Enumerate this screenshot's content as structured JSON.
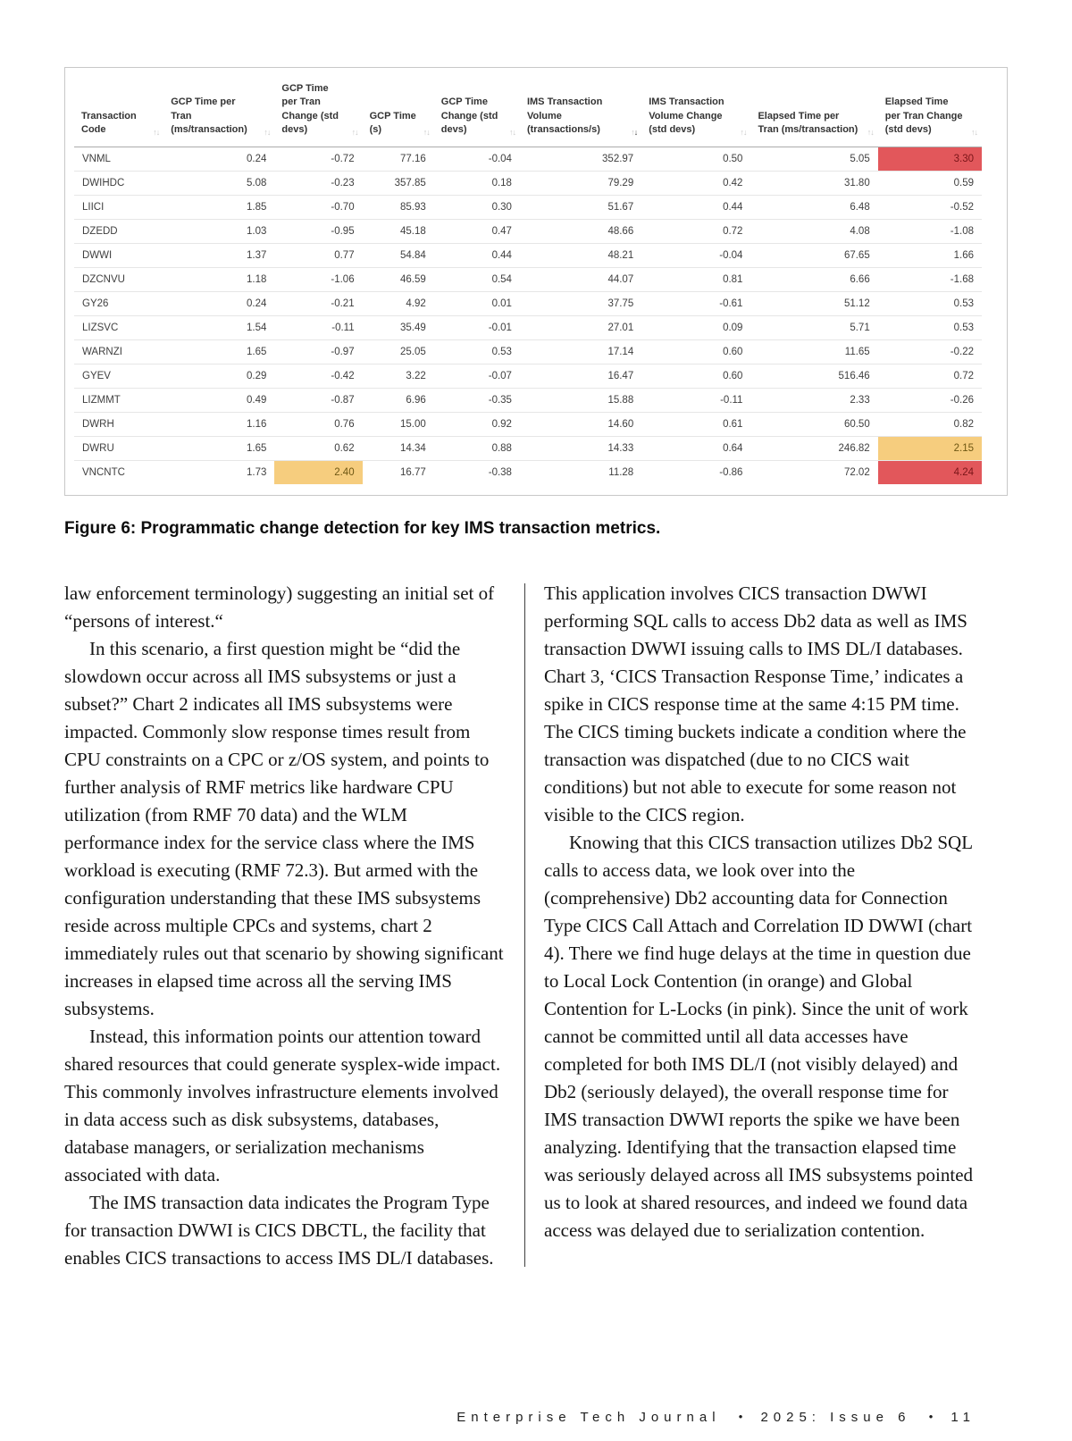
{
  "colors": {
    "highlight_red": "#e2575b",
    "highlight_orange": "#f6cd7e"
  },
  "icons": {
    "sort_up": "↑",
    "sort_down": "↓"
  },
  "figure": {
    "caption": "Figure 6: Programmatic change detection for key IMS transaction metrics.",
    "table": {
      "columns": [
        {
          "label": "Transaction Code",
          "sort": "none"
        },
        {
          "label": "GCP Time per Tran (ms/transaction)",
          "sort": "none"
        },
        {
          "label": "GCP Time per Tran Change (std devs)",
          "sort": "none"
        },
        {
          "label": "GCP Time (s)",
          "sort": "none"
        },
        {
          "label": "GCP Time Change (std devs)",
          "sort": "none"
        },
        {
          "label": "IMS Transaction Volume (transactions/s)",
          "sort": "desc"
        },
        {
          "label": "IMS Transaction Volume Change (std devs)",
          "sort": "none"
        },
        {
          "label": "Elapsed Time per Tran (ms/transaction)",
          "sort": "none"
        },
        {
          "label": "Elapsed Time per Tran Change (std devs)",
          "sort": "none"
        }
      ],
      "rows": [
        {
          "code": "VNML",
          "cells": [
            "0.24",
            "-0.72",
            "77.16",
            "-0.04",
            "352.97",
            "0.50",
            "5.05",
            "3.30"
          ],
          "hl": {
            "7": "red"
          }
        },
        {
          "code": "DWIHDC",
          "cells": [
            "5.08",
            "-0.23",
            "357.85",
            "0.18",
            "79.29",
            "0.42",
            "31.80",
            "0.59"
          ]
        },
        {
          "code": "LIICI",
          "cells": [
            "1.85",
            "-0.70",
            "85.93",
            "0.30",
            "51.67",
            "0.44",
            "6.48",
            "-0.52"
          ]
        },
        {
          "code": "DZEDD",
          "cells": [
            "1.03",
            "-0.95",
            "45.18",
            "0.47",
            "48.66",
            "0.72",
            "4.08",
            "-1.08"
          ]
        },
        {
          "code": "DWWI",
          "cells": [
            "1.37",
            "0.77",
            "54.84",
            "0.44",
            "48.21",
            "-0.04",
            "67.65",
            "1.66"
          ]
        },
        {
          "code": "DZCNVU",
          "cells": [
            "1.18",
            "-1.06",
            "46.59",
            "0.54",
            "44.07",
            "0.81",
            "6.66",
            "-1.68"
          ]
        },
        {
          "code": "GY26",
          "cells": [
            "0.24",
            "-0.21",
            "4.92",
            "0.01",
            "37.75",
            "-0.61",
            "51.12",
            "0.53"
          ]
        },
        {
          "code": "LIZSVC",
          "cells": [
            "1.54",
            "-0.11",
            "35.49",
            "-0.01",
            "27.01",
            "0.09",
            "5.71",
            "0.53"
          ]
        },
        {
          "code": "WARNZI",
          "cells": [
            "1.65",
            "-0.97",
            "25.05",
            "0.53",
            "17.14",
            "0.60",
            "11.65",
            "-0.22"
          ]
        },
        {
          "code": "GYEV",
          "cells": [
            "0.29",
            "-0.42",
            "3.22",
            "-0.07",
            "16.47",
            "0.60",
            "516.46",
            "0.72"
          ]
        },
        {
          "code": "LIZMMT",
          "cells": [
            "0.49",
            "-0.87",
            "6.96",
            "-0.35",
            "15.88",
            "-0.11",
            "2.33",
            "-0.26"
          ]
        },
        {
          "code": "DWRH",
          "cells": [
            "1.16",
            "0.76",
            "15.00",
            "0.92",
            "14.60",
            "0.61",
            "60.50",
            "0.82"
          ]
        },
        {
          "code": "DWRU",
          "cells": [
            "1.65",
            "0.62",
            "14.34",
            "0.88",
            "14.33",
            "0.64",
            "246.82",
            "2.15"
          ],
          "hl": {
            "7": "orange"
          }
        },
        {
          "code": "VNCNTC",
          "cells": [
            "1.73",
            "2.40",
            "16.77",
            "-0.38",
            "11.28",
            "-0.86",
            "72.02",
            "4.24"
          ],
          "hl": {
            "1": "orange",
            "7": "red"
          }
        }
      ]
    }
  },
  "article": {
    "left_column": [
      {
        "indent": false,
        "text": "law enforcement terminology) suggesting an initial set of “persons of interest.“"
      },
      {
        "indent": true,
        "text": "In this scenario, a first question might be “did the slowdown occur across all IMS subsystems or just a subset?” Chart 2 indicates all IMS subsystems were impacted. Commonly slow response times result from CPU constraints on a CPC or z/OS system, and points to further analysis of RMF metrics like hardware CPU utilization (from RMF 70 data) and the WLM performance index for the service class where the IMS workload is executing (RMF 72.3). But armed with the configuration understanding that these IMS subsystems reside across multiple CPCs and systems, chart 2 immediately rules out that scenario by showing significant increases in elapsed time across all the serving IMS subsystems."
      },
      {
        "indent": true,
        "text": "Instead, this information points our attention toward shared resources that could generate sysplex-wide impact. This commonly involves infrastructure elements involved in data access such as disk subsystems, databases, database managers, or serialization mechanisms associated with data."
      },
      {
        "indent": true,
        "text": "The IMS transaction data indicates the Program Type for transaction DWWI is CICS DBCTL, the facility that enables CICS transactions to access IMS DL/I databases."
      }
    ],
    "right_column": [
      {
        "indent": false,
        "text": "This application involves CICS transaction DWWI performing SQL calls to access Db2 data as well as IMS transaction DWWI issuing calls to IMS DL/I databases. Chart 3, ‘CICS Transaction Response Time,’ indicates a spike in CICS response time at the same 4:15 PM time. The CICS timing buckets indicate a condition where the transaction was dispatched (due to no CICS wait conditions) but not able to execute for some reason not visible to the CICS region."
      },
      {
        "indent": true,
        "text": "Knowing that this CICS transaction utilizes Db2 SQL calls to access data, we look over into the (comprehensive) Db2 accounting data for Connection Type CICS Call Attach and Correlation ID DWWI (chart 4). There we find huge delays at the time in question due to Local Lock Contention (in orange) and Global Contention for L-Locks (in pink). Since the unit of work cannot be committed until all data accesses have completed for both IMS DL/I (not visibly delayed) and Db2 (seriously delayed), the overall response time for IMS transaction DWWI reports the spike we have been analyzing. Identifying that the transaction elapsed time was seriously delayed across all IMS subsystems pointed us to look at shared resources, and indeed we found data access was delayed due to serialization contention."
      }
    ]
  },
  "footer": {
    "journal": "Enterprise Tech Journal",
    "issue": "2025: Issue 6",
    "page_number": "11",
    "separator": "•"
  }
}
